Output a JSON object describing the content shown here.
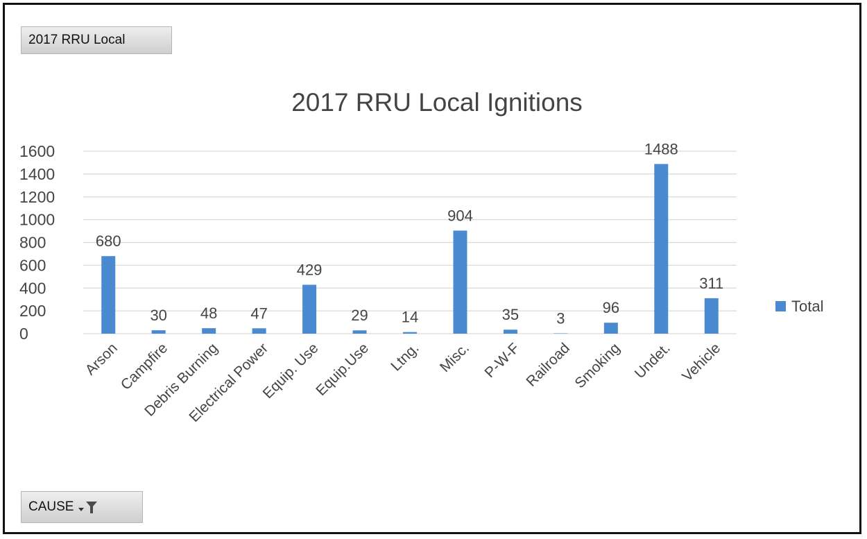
{
  "report_filter_button": {
    "label": "2017 RRU Local"
  },
  "cause_filter_button": {
    "label": "CAUSE",
    "icon": "filter-dropdown-icon"
  },
  "chart_data": {
    "type": "bar",
    "title": "2017 RRU Local Ignitions",
    "xlabel": "",
    "ylabel": "",
    "categories": [
      "Arson",
      "Campfire",
      "Debris Burning",
      "Electrical Power",
      "Equip. Use",
      "Equip.Use",
      "Ltng.",
      "Misc.",
      "P-W-F",
      "Railroad",
      "Smoking",
      "Undet.",
      "Vehicle"
    ],
    "series": [
      {
        "name": "Total",
        "values": [
          680,
          30,
          48,
          47,
          429,
          29,
          14,
          904,
          35,
          3,
          96,
          1488,
          311
        ],
        "color": "#4a8ad0"
      }
    ],
    "ylim": [
      0,
      1600
    ],
    "yticks": [
      0,
      200,
      400,
      600,
      800,
      1000,
      1200,
      1400,
      1600
    ],
    "grid": true,
    "legend_position": "right",
    "data_labels": true
  }
}
